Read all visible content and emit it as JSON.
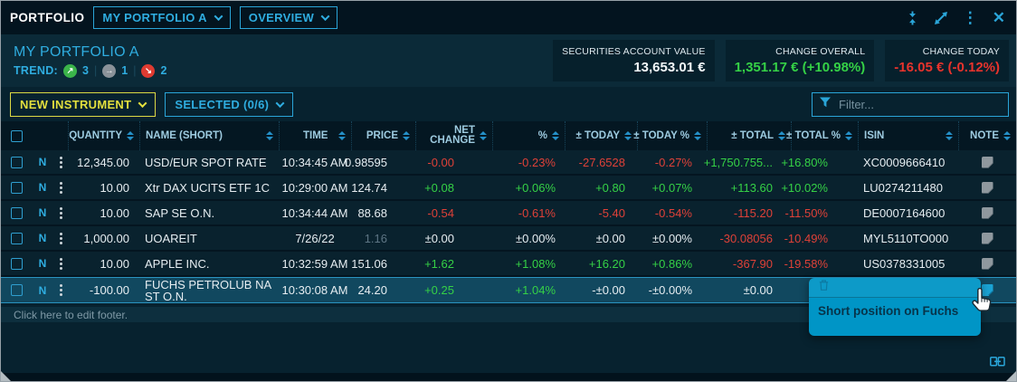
{
  "colors": {
    "accent_cyan": "#2aa5d8",
    "accent_yellow": "#e3df3e",
    "positive_green": "#35d146",
    "negative_red": "#df4138",
    "selection_blue": "#11485f",
    "popup_blue": "#0095c6"
  },
  "titlebar": {
    "app_label": "PORTFOLIO",
    "portfolio_selector": "MY PORTFOLIO A",
    "view_selector": "OVERVIEW",
    "icons": [
      "collapse-vertical-icon",
      "expand-icon",
      "kebab-menu-icon",
      "close-icon"
    ]
  },
  "summary": {
    "title": "MY PORTFOLIO A",
    "trend_label": "TREND:",
    "trend": {
      "up": "3",
      "flat": "1",
      "down": "2"
    },
    "trend_icons": [
      "trend-up-icon",
      "trend-flat-icon",
      "trend-down-icon"
    ],
    "stats": [
      {
        "label": "SECURITIES ACCOUNT VALUE",
        "value": "13,653.01 €",
        "tone": "white"
      },
      {
        "label": "CHANGE OVERALL",
        "value": "1,351.17 € (+10.98%)",
        "tone": "pos"
      },
      {
        "label": "CHANGE TODAY",
        "value": "-16.05 € (-0.12%)",
        "tone": "neg"
      }
    ]
  },
  "toolbar": {
    "new_instrument_label": "NEW INSTRUMENT",
    "selected_label": "SELECTED (0/6)",
    "filter_placeholder": "Filter...",
    "filter_icon": "funnel-icon"
  },
  "table": {
    "columns": [
      "QUANTITY",
      "NAME (SHORT)",
      "TIME",
      "PRICE",
      "NET CHANGE",
      "%",
      "± TODAY",
      "± TODAY %",
      "± TOTAL",
      "± TOTAL %",
      "ISIN",
      "NOTE"
    ],
    "rows": [
      {
        "flag": "N",
        "quantity": "12,345.00",
        "name": "USD/EUR SPOT RATE",
        "time": "10:34:45 AM",
        "price": {
          "v": "0.98595",
          "tone": "neu"
        },
        "net_change": {
          "v": "-0.00",
          "tone": "neg"
        },
        "pct": {
          "v": "-0.23%",
          "tone": "neg"
        },
        "today": {
          "v": "-27.6528",
          "tone": "neg"
        },
        "today_pct": {
          "v": "-0.27%",
          "tone": "neg"
        },
        "total": {
          "v": "+1,750.755...",
          "tone": "pos"
        },
        "total_pct": {
          "v": "+16.80%",
          "tone": "pos"
        },
        "isin": "XC0009666410",
        "note": true,
        "note_active": false,
        "selected": false
      },
      {
        "flag": "N",
        "quantity": "10.00",
        "name": "Xtr DAX UCITS ETF 1C",
        "time": "10:29:00 AM",
        "price": {
          "v": "124.74",
          "tone": "neu"
        },
        "net_change": {
          "v": "+0.08",
          "tone": "pos"
        },
        "pct": {
          "v": "+0.06%",
          "tone": "pos"
        },
        "today": {
          "v": "+0.80",
          "tone": "pos"
        },
        "today_pct": {
          "v": "+0.07%",
          "tone": "pos"
        },
        "total": {
          "v": "+113.60",
          "tone": "pos"
        },
        "total_pct": {
          "v": "+10.02%",
          "tone": "pos"
        },
        "isin": "LU0274211480",
        "note": true,
        "note_active": false,
        "selected": false
      },
      {
        "flag": "N",
        "quantity": "10.00",
        "name": "SAP SE O.N.",
        "time": "10:34:44 AM",
        "price": {
          "v": "88.68",
          "tone": "neu"
        },
        "net_change": {
          "v": "-0.54",
          "tone": "neg"
        },
        "pct": {
          "v": "-0.61%",
          "tone": "neg"
        },
        "today": {
          "v": "-5.40",
          "tone": "neg"
        },
        "today_pct": {
          "v": "-0.54%",
          "tone": "neg"
        },
        "total": {
          "v": "-115.20",
          "tone": "neg"
        },
        "total_pct": {
          "v": "-11.50%",
          "tone": "neg"
        },
        "isin": "DE0007164600",
        "note": true,
        "note_active": false,
        "selected": false
      },
      {
        "flag": "N",
        "quantity": "1,000.00",
        "name": "UOAREIT",
        "time": "7/26/22",
        "price": {
          "v": "1.16",
          "tone": "dim"
        },
        "net_change": {
          "v": "±0.00",
          "tone": "neu"
        },
        "pct": {
          "v": "±0.00%",
          "tone": "neu"
        },
        "today": {
          "v": "±0.00",
          "tone": "neu"
        },
        "today_pct": {
          "v": "±0.00%",
          "tone": "neu"
        },
        "total": {
          "v": "-30.08056",
          "tone": "neg"
        },
        "total_pct": {
          "v": "-10.49%",
          "tone": "neg"
        },
        "isin": "MYL5110TO000",
        "note": true,
        "note_active": false,
        "selected": false
      },
      {
        "flag": "N",
        "quantity": "10.00",
        "name": "APPLE INC.",
        "time": "10:32:59 AM",
        "price": {
          "v": "151.06",
          "tone": "neu"
        },
        "net_change": {
          "v": "+1.62",
          "tone": "pos"
        },
        "pct": {
          "v": "+1.08%",
          "tone": "pos"
        },
        "today": {
          "v": "+16.20",
          "tone": "pos"
        },
        "today_pct": {
          "v": "+0.86%",
          "tone": "pos"
        },
        "total": {
          "v": "-367.90",
          "tone": "neg"
        },
        "total_pct": {
          "v": "-19.58%",
          "tone": "neg"
        },
        "isin": "US0378331005",
        "note": true,
        "note_active": false,
        "selected": false
      },
      {
        "flag": "N",
        "quantity": "-100.00",
        "name": "FUCHS PETROLUB NA ST O.N.",
        "time": "10:30:08 AM",
        "price": {
          "v": "24.20",
          "tone": "neu"
        },
        "net_change": {
          "v": "+0.25",
          "tone": "pos"
        },
        "pct": {
          "v": "+1.04%",
          "tone": "pos"
        },
        "today": {
          "v": "-±0.00",
          "tone": "neu"
        },
        "today_pct": {
          "v": "-±0.00%",
          "tone": "neu"
        },
        "total": {
          "v": "±0.00",
          "tone": "neu"
        },
        "total_pct": {
          "v": "",
          "tone": "neu"
        },
        "isin": "",
        "note": true,
        "note_active": true,
        "selected": true
      }
    ]
  },
  "note_popup": {
    "text": "Short position on Fuchs",
    "icon": "trash-icon"
  },
  "footer": {
    "placeholder": "Click here to edit footer."
  },
  "bottom": {
    "link_icon": "link-panels-icon"
  }
}
